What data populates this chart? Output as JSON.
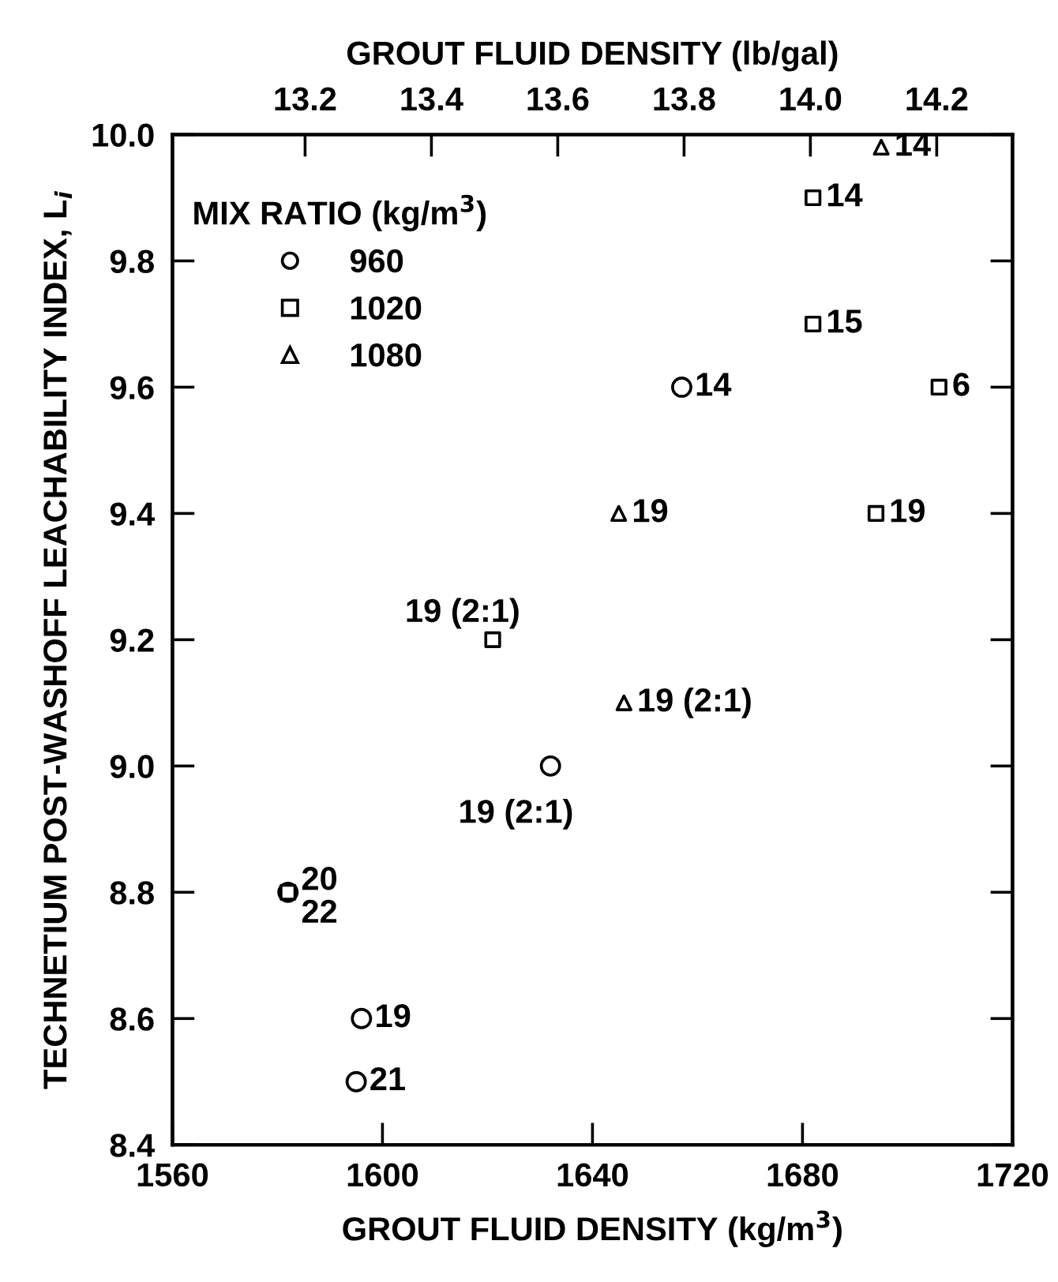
{
  "chart_data": {
    "type": "scatter",
    "xlabel": "GROUT FLUID DENSITY (kg/m$^{3}$)",
    "x2label": "GROUT FLUID DENSITY (lb/gal)",
    "ylabel": "TECHNETIUM POST-WASHOFF LEACHABILITY INDEX, L$_{i}$",
    "legend_title": "MIX RATIO (kg/m$^{3}$)",
    "legend": "top left",
    "grid": false,
    "xlim": [
      1560,
      1720
    ],
    "xticks": [
      1560,
      1600,
      1640,
      1680,
      1720
    ],
    "x2lim": [
      12.99,
      14.32
    ],
    "x2ticks": [
      13.2,
      13.4,
      13.6,
      13.8,
      {
        "value": 14.0,
        "label": "14.0"
      },
      14.2
    ],
    "ylim": [
      8.4,
      10.0
    ],
    "yticks": [
      8.4,
      8.6,
      8.8,
      {
        "value": 9.0,
        "label": "9.0"
      },
      9.2,
      9.4,
      9.6,
      9.8,
      {
        "value": 10.0,
        "label": "10.0"
      }
    ],
    "series": [
      {
        "name": "960",
        "color": "#000000",
        "marker": "circle",
        "x": [
          1657,
          1632,
          1582,
          1596,
          1595
        ],
        "values": [
          9.6,
          9.0,
          8.8,
          8.6,
          8.5
        ]
      },
      {
        "name": "1020",
        "color": "#000000",
        "marker": "square",
        "x": [
          1682,
          1682,
          1706,
          1694,
          1621,
          1582
        ],
        "values": [
          9.9,
          9.7,
          9.6,
          9.4,
          9.2,
          8.8
        ]
      },
      {
        "name": "1080",
        "color": "#000000",
        "marker": "triangle",
        "x": [
          1695,
          1645,
          1646
        ],
        "values": [
          9.98,
          9.4,
          9.1
        ]
      }
    ],
    "annotations": [
      {
        "text": "14",
        "x": 1657,
        "y": 9.6
      },
      {
        "text": "19 (2:1)",
        "x": 1632,
        "y": 9.0
      },
      {
        "text": "20",
        "x": 1582,
        "y": 8.8
      },
      {
        "text": "19",
        "x": 1596,
        "y": 8.6
      },
      {
        "text": "21",
        "x": 1595,
        "y": 8.5
      },
      {
        "text": "14",
        "x": 1682,
        "y": 9.9
      },
      {
        "text": "15",
        "x": 1682,
        "y": 9.7
      },
      {
        "text": "6",
        "x": 1706,
        "y": 9.6
      },
      {
        "text": "19",
        "x": 1694,
        "y": 9.4
      },
      {
        "text": "19 (2:1)",
        "x": 1621,
        "y": 9.2
      },
      {
        "text": "22",
        "x": 1582,
        "y": 8.8
      },
      {
        "text": "14",
        "x": 1695,
        "y": 9.98
      },
      {
        "text": "19",
        "x": 1645,
        "y": 9.4
      },
      {
        "text": "19 (2:1)",
        "x": 1646,
        "y": 9.1
      }
    ]
  }
}
